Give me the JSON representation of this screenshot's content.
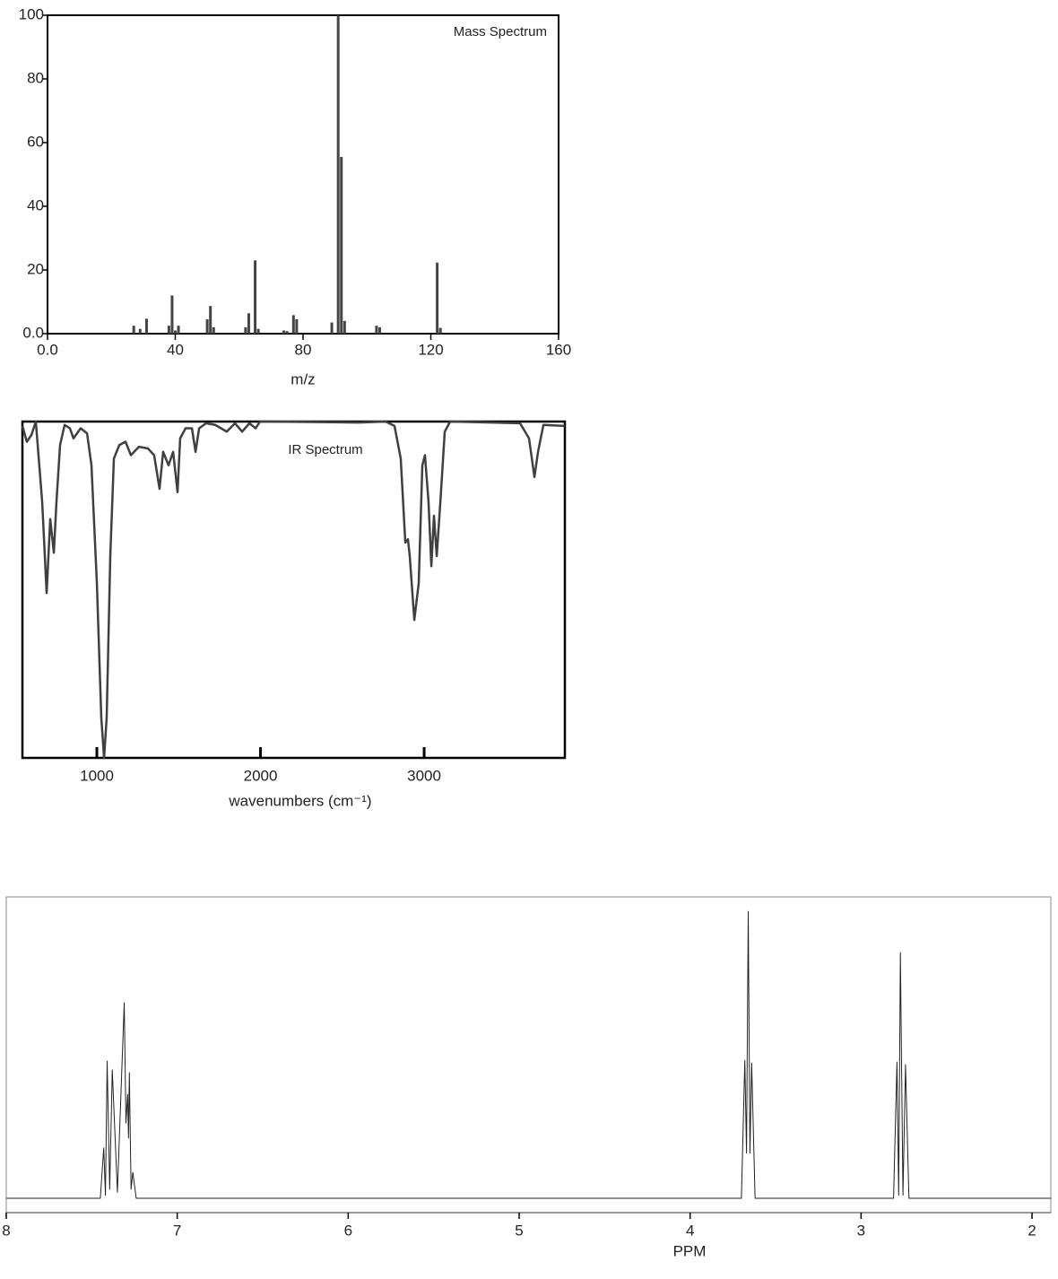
{
  "chart_data": [
    {
      "type": "bar",
      "title": "Mass Spectrum",
      "xlabel": "m/z",
      "color": "#444444",
      "x": [
        27,
        29,
        31,
        38,
        39,
        40,
        41,
        50,
        51,
        52,
        62,
        63,
        65,
        66,
        74,
        75,
        77,
        78,
        89,
        91,
        92,
        93,
        103,
        104,
        122,
        123
      ],
      "values": [
        2.5,
        1.5,
        4.7,
        2.5,
        12,
        1,
        2.5,
        4.5,
        8.7,
        2,
        2,
        6.4,
        23,
        1.5,
        1,
        0.8,
        5.8,
        4.5,
        3.5,
        100,
        55.5,
        4,
        2.5,
        2,
        22.3,
        1.8
      ],
      "xlim": [
        0,
        160
      ],
      "xticks": [
        {
          "value": 0,
          "label": "0.0"
        },
        40,
        80,
        120,
        160
      ],
      "ylim": [
        0,
        100
      ],
      "yticks": [
        {
          "value": 0,
          "label": "0.0"
        },
        20,
        40,
        60,
        80,
        100
      ]
    },
    {
      "type": "line",
      "title": "IR Spectrum",
      "xlabel": "wavenumbers (cm⁻¹)",
      "color": "#404040",
      "x": [
        545,
        572,
        600,
        627,
        666,
        693,
        715,
        737,
        753,
        775,
        803,
        835,
        857,
        901,
        940,
        967,
        1000,
        1027,
        1044,
        1060,
        1082,
        1104,
        1137,
        1175,
        1208,
        1257,
        1312,
        1350,
        1383,
        1405,
        1438,
        1466,
        1493,
        1509,
        1542,
        1581,
        1603,
        1625,
        1668,
        1723,
        1794,
        1844,
        1888,
        1932,
        1970,
        1997,
        2052,
        2600,
        2764,
        2819,
        2857,
        2885,
        2901,
        2912,
        2940,
        2967,
        2989,
        3005,
        3027,
        3044,
        3060,
        3077,
        3099,
        3126,
        3159,
        3586,
        3641,
        3674,
        3696,
        3729,
        3860
      ],
      "values": [
        98.7,
        94,
        96,
        100,
        76,
        49,
        71,
        61,
        76,
        93,
        99,
        98,
        95,
        98,
        96.5,
        87,
        52,
        12,
        0,
        12,
        60,
        89,
        93,
        94,
        90,
        92.5,
        92,
        90,
        80,
        91,
        87,
        91,
        79,
        95,
        98,
        98,
        91,
        98,
        99.5,
        99,
        97,
        99.5,
        97,
        99.5,
        98,
        100,
        100,
        99.7,
        100,
        98.7,
        89,
        64,
        65,
        60,
        41,
        52,
        87,
        90,
        76,
        57,
        72,
        60,
        76,
        97,
        100,
        99.5,
        95,
        83.5,
        91,
        99,
        98.7
      ],
      "xlim": [
        545,
        3860
      ],
      "xticks": [
        1000,
        2000,
        3000
      ],
      "ylim": [
        0,
        100
      ]
    },
    {
      "type": "line",
      "xlabel": "PPM",
      "color": "#222222",
      "x": [
        8,
        7.45,
        7.43,
        7.42,
        7.41,
        7.395,
        7.38,
        7.35,
        7.31,
        7.3,
        7.29,
        7.285,
        7.28,
        7.27,
        7.26,
        7.24,
        3.7,
        3.68,
        3.67,
        3.66,
        3.65,
        3.64,
        3.62,
        2.81,
        2.79,
        2.78,
        2.77,
        2.755,
        2.74,
        2.72,
        1.89
      ],
      "values": [
        0,
        0,
        16.7,
        1,
        45.5,
        3,
        42.6,
        2,
        64.9,
        25,
        34.5,
        20,
        41.7,
        3,
        8.6,
        0,
        0,
        45.8,
        15,
        95.2,
        15,
        44.9,
        0,
        0,
        45.2,
        1,
        81.5,
        1,
        44.3,
        0,
        0
      ],
      "xlim": [
        8,
        1.89
      ],
      "xticks": [
        8,
        7,
        6,
        5,
        4,
        3,
        2
      ],
      "ylim": [
        0,
        100
      ]
    }
  ]
}
